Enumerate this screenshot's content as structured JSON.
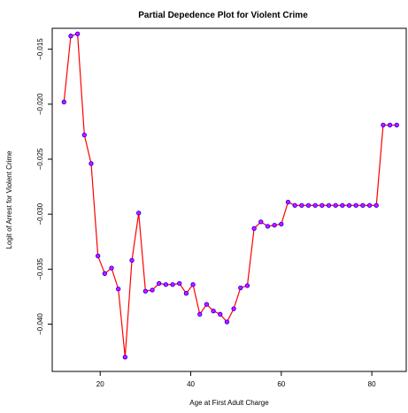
{
  "chart_data": {
    "type": "line",
    "title": "Partial Depedence Plot for Violent Crime",
    "xlabel": "Age at First Adult Charge",
    "ylabel": "Logit of Arrest for Violent Crime",
    "xlim": [
      9.4,
      87.6
    ],
    "ylim": [
      -0.0443,
      -0.0131
    ],
    "x_ticks": [
      20,
      40,
      60,
      80
    ],
    "x_tick_labels": [
      "20",
      "40",
      "60",
      "80"
    ],
    "y_ticks": [
      -0.04,
      -0.035,
      -0.03,
      -0.025,
      -0.02,
      -0.015
    ],
    "y_tick_labels": [
      "−0.040",
      "−0.035",
      "−0.030",
      "−0.025",
      "−0.020",
      "−0.015"
    ],
    "grid": false,
    "line_color": "#ff0000",
    "point_color": "#0000ff",
    "point_fill": "#ff00ff",
    "series": [
      {
        "x": [
          12,
          13.5,
          15,
          16.5,
          18,
          19.5,
          21,
          22.5,
          24,
          25.5,
          27,
          28.5,
          30,
          31.5,
          33,
          34.5,
          36,
          37.5,
          39,
          40.5,
          42,
          43.5,
          45,
          46.5,
          48,
          49.5,
          51,
          52.5,
          54,
          55.5,
          57,
          58.5,
          60,
          61.5,
          63,
          64.5,
          66,
          67.5,
          69,
          70.5,
          72,
          73.5,
          75,
          76.5,
          78,
          79.5,
          81,
          82.5,
          84,
          85.5
        ],
        "y": [
          -0.0198,
          -0.0138,
          -0.0136,
          -0.0228,
          -0.0254,
          -0.0338,
          -0.0354,
          -0.0349,
          -0.0368,
          -0.043,
          -0.0342,
          -0.0299,
          -0.037,
          -0.0369,
          -0.0363,
          -0.0364,
          -0.0364,
          -0.0363,
          -0.0372,
          -0.0364,
          -0.0391,
          -0.0382,
          -0.0388,
          -0.0391,
          -0.0398,
          -0.0386,
          -0.0367,
          -0.0365,
          -0.0313,
          -0.0307,
          -0.0311,
          -0.031,
          -0.0309,
          -0.0289,
          -0.0292,
          -0.0292,
          -0.0292,
          -0.0292,
          -0.0292,
          -0.0292,
          -0.0292,
          -0.0292,
          -0.0292,
          -0.0292,
          -0.0292,
          -0.0292,
          -0.0292,
          -0.0219,
          -0.0219,
          -0.0219
        ]
      }
    ]
  }
}
